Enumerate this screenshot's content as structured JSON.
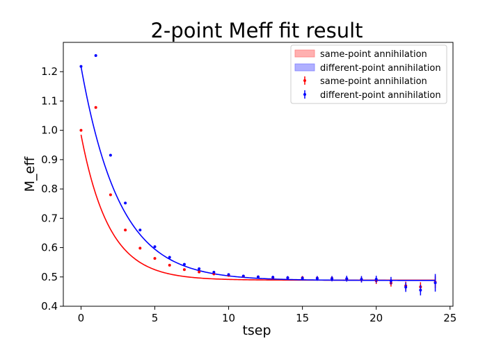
{
  "chart_data": {
    "type": "scatter",
    "title": "2-point Meff fit result",
    "xlabel": "tsep",
    "ylabel": "M_eff",
    "xlim": [
      -1.2,
      25.2
    ],
    "ylim": [
      0.4,
      1.3
    ],
    "xticks": [
      0,
      5,
      10,
      15,
      20,
      25
    ],
    "yticks": [
      0.4,
      0.5,
      0.6,
      0.7,
      0.8,
      0.9,
      1.0,
      1.1,
      1.2
    ],
    "xtick_labels": [
      "0",
      "5",
      "10",
      "15",
      "20",
      "25"
    ],
    "ytick_labels": [
      "0.4",
      "0.5",
      "0.6",
      "0.7",
      "0.8",
      "0.9",
      "1.0",
      "1.1",
      "1.2"
    ],
    "grid": false,
    "legend_position": "top-right",
    "legend": [
      {
        "label": "same-point annihilation",
        "kind": "band",
        "color": "#ffb0b0",
        "edge": "#ff7f7f"
      },
      {
        "label": "different-point annihilation",
        "kind": "band",
        "color": "#b0b0ff",
        "edge": "#7f7fff"
      },
      {
        "label": "same-point annihilation",
        "kind": "errorbar",
        "color": "#ff0000"
      },
      {
        "label": "different-point annihilation",
        "kind": "errorbar",
        "color": "#0000ff"
      }
    ],
    "series": [
      {
        "name": "same-point annihilation",
        "color": "#ff0000",
        "points": [
          {
            "x": 0,
            "y": 1.0,
            "err": 0.002
          },
          {
            "x": 1,
            "y": 1.078,
            "err": 0.002
          },
          {
            "x": 2,
            "y": 0.78,
            "err": 0.002
          },
          {
            "x": 3,
            "y": 0.66,
            "err": 0.002
          },
          {
            "x": 4,
            "y": 0.598,
            "err": 0.002
          },
          {
            "x": 5,
            "y": 0.563,
            "err": 0.002
          },
          {
            "x": 6,
            "y": 0.54,
            "err": 0.002
          },
          {
            "x": 7,
            "y": 0.525,
            "err": 0.003
          },
          {
            "x": 8,
            "y": 0.517,
            "err": 0.003
          },
          {
            "x": 9,
            "y": 0.51,
            "err": 0.003
          },
          {
            "x": 10,
            "y": 0.505,
            "err": 0.003
          },
          {
            "x": 11,
            "y": 0.502,
            "err": 0.004
          },
          {
            "x": 12,
            "y": 0.5,
            "err": 0.004
          },
          {
            "x": 13,
            "y": 0.498,
            "err": 0.005
          },
          {
            "x": 14,
            "y": 0.497,
            "err": 0.005
          },
          {
            "x": 15,
            "y": 0.497,
            "err": 0.006
          },
          {
            "x": 16,
            "y": 0.496,
            "err": 0.006
          },
          {
            "x": 17,
            "y": 0.495,
            "err": 0.007
          },
          {
            "x": 18,
            "y": 0.493,
            "err": 0.008
          },
          {
            "x": 19,
            "y": 0.491,
            "err": 0.009
          },
          {
            "x": 20,
            "y": 0.487,
            "err": 0.011
          },
          {
            "x": 21,
            "y": 0.479,
            "err": 0.012
          },
          {
            "x": 22,
            "y": 0.47,
            "err": 0.014
          },
          {
            "x": 23,
            "y": 0.466,
            "err": 0.016
          },
          {
            "x": 24,
            "y": 0.482,
            "err": 0.02
          }
        ],
        "fit_curve": {
          "A": 0.496,
          "B": 0.489,
          "tau": 1.9
        }
      },
      {
        "name": "different-point annihilation",
        "color": "#0000ff",
        "points": [
          {
            "x": 0,
            "y": 1.218,
            "err": 0.002
          },
          {
            "x": 1,
            "y": 1.255,
            "err": 0.002
          },
          {
            "x": 2,
            "y": 0.915,
            "err": 0.002
          },
          {
            "x": 3,
            "y": 0.752,
            "err": 0.002
          },
          {
            "x": 4,
            "y": 0.66,
            "err": 0.002
          },
          {
            "x": 5,
            "y": 0.603,
            "err": 0.002
          },
          {
            "x": 6,
            "y": 0.567,
            "err": 0.002
          },
          {
            "x": 7,
            "y": 0.543,
            "err": 0.003
          },
          {
            "x": 8,
            "y": 0.528,
            "err": 0.003
          },
          {
            "x": 9,
            "y": 0.516,
            "err": 0.004
          },
          {
            "x": 10,
            "y": 0.508,
            "err": 0.004
          },
          {
            "x": 11,
            "y": 0.503,
            "err": 0.004
          },
          {
            "x": 12,
            "y": 0.5,
            "err": 0.005
          },
          {
            "x": 13,
            "y": 0.499,
            "err": 0.005
          },
          {
            "x": 14,
            "y": 0.497,
            "err": 0.006
          },
          {
            "x": 15,
            "y": 0.495,
            "err": 0.007
          },
          {
            "x": 16,
            "y": 0.495,
            "err": 0.008
          },
          {
            "x": 17,
            "y": 0.494,
            "err": 0.009
          },
          {
            "x": 18,
            "y": 0.494,
            "err": 0.01
          },
          {
            "x": 19,
            "y": 0.492,
            "err": 0.011
          },
          {
            "x": 20,
            "y": 0.492,
            "err": 0.012
          },
          {
            "x": 21,
            "y": 0.487,
            "err": 0.013
          },
          {
            "x": 22,
            "y": 0.465,
            "err": 0.016
          },
          {
            "x": 23,
            "y": 0.455,
            "err": 0.018
          },
          {
            "x": 24,
            "y": 0.48,
            "err": 0.03
          }
        ],
        "fit_curve": {
          "A": 0.729,
          "B": 0.488,
          "tau": 2.6
        }
      }
    ]
  }
}
